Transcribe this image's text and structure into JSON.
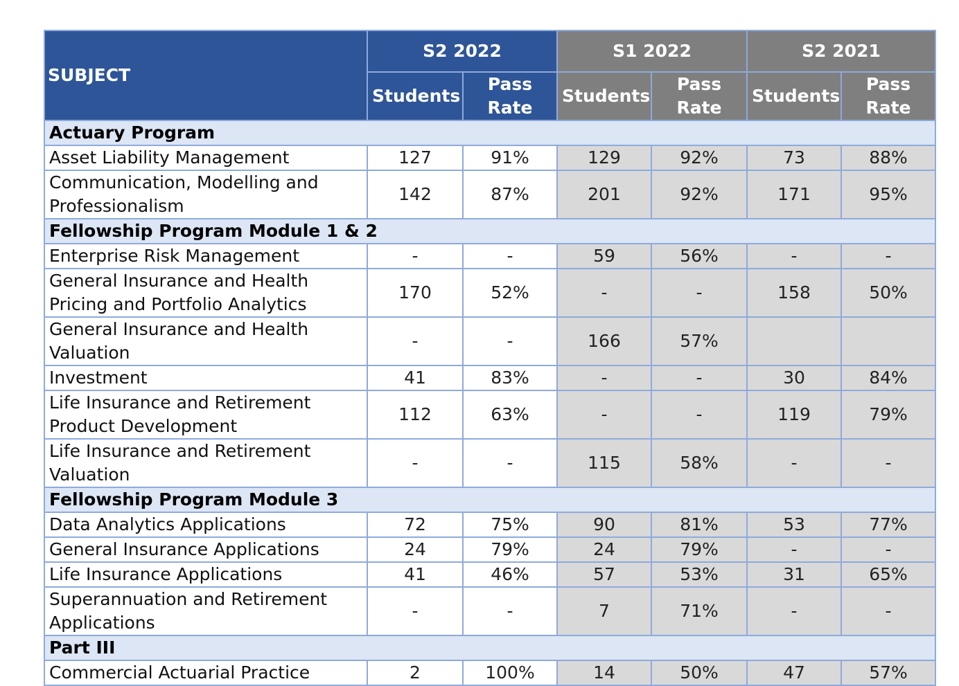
{
  "header": {
    "subject": "SUBJECT",
    "periods": [
      {
        "label": "S2 2022",
        "columns": [
          "Students",
          "Pass Rate"
        ]
      },
      {
        "label": "S1 2022",
        "columns": [
          "Students",
          "Pass Rate"
        ]
      },
      {
        "label": "S2 2021",
        "columns": [
          "Students",
          "Pass Rate"
        ]
      }
    ]
  },
  "sections": [
    {
      "title": "Actuary Program",
      "rows": [
        {
          "subject": "Asset Liability Management",
          "values": [
            "127",
            "91%",
            "129",
            "92%",
            "73",
            "88%"
          ]
        },
        {
          "subject": "Communication, Modelling and Professionalism",
          "values": [
            "142",
            "87%",
            "201",
            "92%",
            "171",
            "95%"
          ]
        }
      ]
    },
    {
      "title": "Fellowship Program Module 1 & 2",
      "rows": [
        {
          "subject": "Enterprise Risk Management",
          "values": [
            "-",
            "-",
            "59",
            "56%",
            "-",
            "-"
          ]
        },
        {
          "subject": "General Insurance and Health Pricing and Portfolio Analytics",
          "values": [
            "170",
            "52%",
            "-",
            "-",
            "158",
            "50%"
          ]
        },
        {
          "subject": "General Insurance and Health Valuation",
          "values": [
            "-",
            "-",
            "166",
            "57%",
            null,
            null
          ]
        },
        {
          "subject": "Investment",
          "values": [
            "41",
            "83%",
            "-",
            "-",
            "30",
            "84%"
          ]
        },
        {
          "subject": "Life Insurance and Retirement Product Development",
          "values": [
            "112",
            "63%",
            "-",
            "-",
            "119",
            "79%"
          ]
        },
        {
          "subject": "Life Insurance and Retirement Valuation",
          "values": [
            "-",
            "-",
            "115",
            "58%",
            "-",
            "-"
          ]
        }
      ]
    },
    {
      "title": "Fellowship Program Module 3",
      "rows": [
        {
          "subject": "Data Analytics Applications",
          "values": [
            "72",
            "75%",
            "90",
            "81%",
            "53",
            "77%"
          ]
        },
        {
          "subject": "General Insurance Applications",
          "values": [
            "24",
            "79%",
            "24",
            "79%",
            "-",
            "-"
          ]
        },
        {
          "subject": "Life Insurance Applications",
          "values": [
            "41",
            "46%",
            "57",
            "53%",
            "31",
            "65%"
          ]
        },
        {
          "subject": "Superannuation and Retirement Applications",
          "values": [
            "-",
            "-",
            "7",
            "71%",
            "-",
            "-"
          ]
        }
      ]
    },
    {
      "title": "Part III",
      "rows": [
        {
          "subject": "Commercial Actuarial Practice",
          "values": [
            "2",
            "100%",
            "14",
            "50%",
            "47",
            "57%"
          ]
        }
      ]
    }
  ]
}
